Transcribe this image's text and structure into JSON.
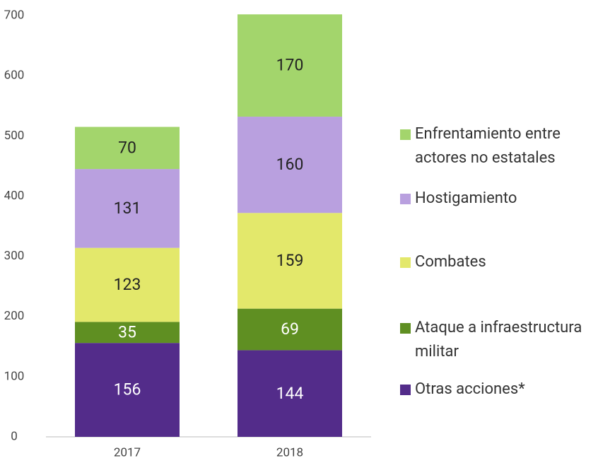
{
  "chart_data": {
    "type": "stacked_bar",
    "categories": [
      "2017",
      "2018"
    ],
    "series": [
      {
        "name": "Otras acciones*",
        "color": "#532c8a",
        "values": [
          156,
          144
        ]
      },
      {
        "name": "Ataque a infraestructura militar",
        "color": "#5f8f22",
        "values": [
          35,
          69
        ]
      },
      {
        "name": "Combates",
        "color": "#e3e86b",
        "values": [
          123,
          159
        ]
      },
      {
        "name": "Hostigamiento",
        "color": "#b9a0df",
        "values": [
          131,
          160
        ]
      },
      {
        "name": "Enfrentamiento entre actores no estatales",
        "color": "#a3d56c",
        "values": [
          70,
          170
        ]
      }
    ],
    "ylim": [
      0,
      700
    ],
    "yticks": [
      0,
      100,
      200,
      300,
      400,
      500,
      600,
      700
    ],
    "grid": false,
    "legend": "right"
  }
}
